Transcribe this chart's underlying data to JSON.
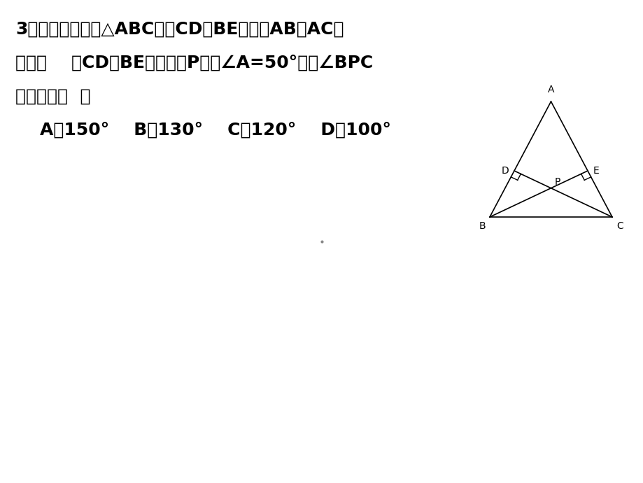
{
  "bg_color": "#ffffff",
  "text_color": "#000000",
  "line_color": "#000000",
  "label_fontsize": 10,
  "fig_geometry": {
    "A": [
      0.5,
      1.0
    ],
    "B": [
      0.0,
      0.0
    ],
    "C": [
      1.0,
      0.0
    ]
  },
  "text_lines": [
    [
      "3．如图，在锐角△",
      "ABC",
      "中，",
      "CD",
      "、",
      "BE",
      "分别是",
      "AB",
      "、",
      "AC",
      "上"
    ],
    [
      "的高，    且",
      "CD",
      "、",
      "BE",
      "交于一点",
      "P",
      "，若∠",
      "A",
      "=50°，则∠",
      "BPC"
    ],
    [
      "的度数是（  ）"
    ],
    [
      "    A．150°    B．130°    C．120°    D．100°"
    ]
  ]
}
